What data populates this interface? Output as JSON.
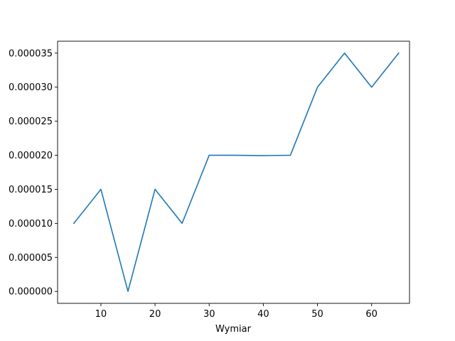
{
  "chart_data": {
    "type": "line",
    "title": "",
    "xlabel": "Wymiar",
    "ylabel": "",
    "xlim": [
      2,
      67
    ],
    "ylim": [
      -1.75e-06,
      3.675e-05
    ],
    "xticks": [
      10,
      20,
      30,
      40,
      50,
      60
    ],
    "xtick_labels": [
      "10",
      "20",
      "30",
      "40",
      "50",
      "60"
    ],
    "yticks": [
      0,
      5e-06,
      1e-05,
      1.5e-05,
      2e-05,
      2.5e-05,
      3e-05,
      3.5e-05
    ],
    "ytick_labels": [
      "0.000000",
      "0.000005",
      "0.000010",
      "0.000015",
      "0.000020",
      "0.000025",
      "0.000030",
      "0.000035"
    ],
    "grid": false,
    "legend": "none",
    "x": [
      5,
      10,
      15,
      20,
      25,
      30,
      35,
      40,
      45,
      50,
      55,
      60,
      65
    ],
    "series": [
      {
        "color": "#1f77b4",
        "values": [
          1e-05,
          1.5e-05,
          0.0,
          1.5e-05,
          1e-05,
          2e-05,
          2e-05,
          1.995e-05,
          2e-05,
          3e-05,
          3.5e-05,
          3e-05,
          3.5e-05
        ]
      }
    ]
  }
}
